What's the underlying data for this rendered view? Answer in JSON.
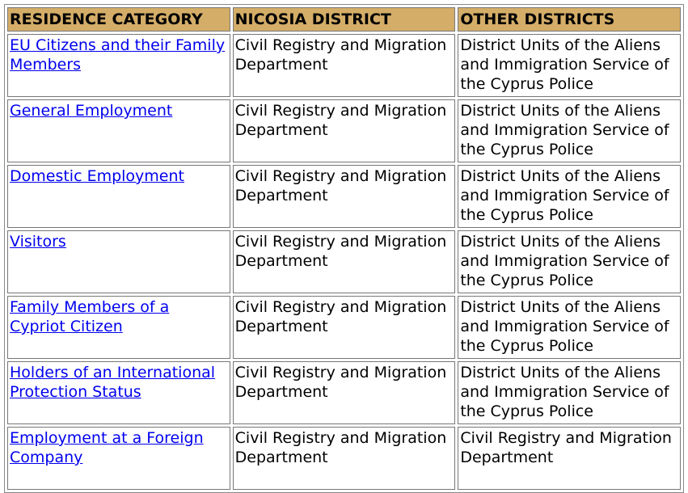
{
  "header": {
    "category": "RESIDENCE CATEGORY",
    "nicosia": "NICOSIA DISTRICT",
    "other": "OTHER DISTRICTS"
  },
  "colors": {
    "header_bg": "#d4ad68",
    "link": "#0000ee"
  },
  "rows": [
    {
      "category": "EU Citizens and their Family Members",
      "nicosia": "Civil Registry and Migration Department",
      "other": "District Units of the Aliens and Immigration Service of the Cyprus Police"
    },
    {
      "category": "General Employment",
      "nicosia": "Civil Registry and Migration Department",
      "other": "District Units of the Aliens and Immigration Service of the Cyprus Police"
    },
    {
      "category": "Domestic Employment",
      "nicosia": "Civil Registry and Migration Department",
      "other": "District Units of the Aliens and Immigration Service of the Cyprus Police"
    },
    {
      "category": "Visitors",
      "nicosia": "Civil Registry and Migration Department",
      "other": "District Units of the Aliens and Immigration Service of the Cyprus Police"
    },
    {
      "category": "Family Members of a Cypriot Citizen",
      "nicosia": "Civil Registry and Migration Department",
      "other": "District Units of the Aliens and Immigration Service of the Cyprus Police"
    },
    {
      "category": "Holders of an International Protection Status",
      "nicosia": "Civil Registry and Migration Department",
      "other": "District Units of the Aliens and Immigration Service of the Cyprus Police"
    },
    {
      "category": "Employment at a Foreign Company",
      "nicosia": "Civil Registry and Migration Department",
      "other": "Civil Registry and Migration Department"
    }
  ]
}
